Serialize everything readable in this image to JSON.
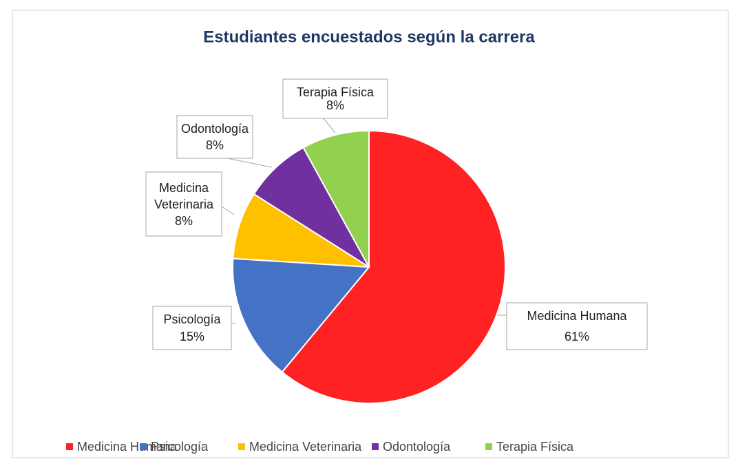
{
  "chart_data": {
    "type": "pie",
    "title": "Estudiantes encuestados según la carrera",
    "categories": [
      "Medicina Humana",
      "Psicología",
      "Medicina Veterinaria",
      "Odontología",
      "Terapia Física"
    ],
    "values": [
      61,
      15,
      8,
      8,
      8
    ],
    "value_labels": [
      "61%",
      "15%",
      "8%",
      "8%",
      "8%"
    ],
    "colors": [
      "#ff2222",
      "#4472c4",
      "#ffc000",
      "#7030a0",
      "#92d050"
    ],
    "legend": "bottom"
  }
}
